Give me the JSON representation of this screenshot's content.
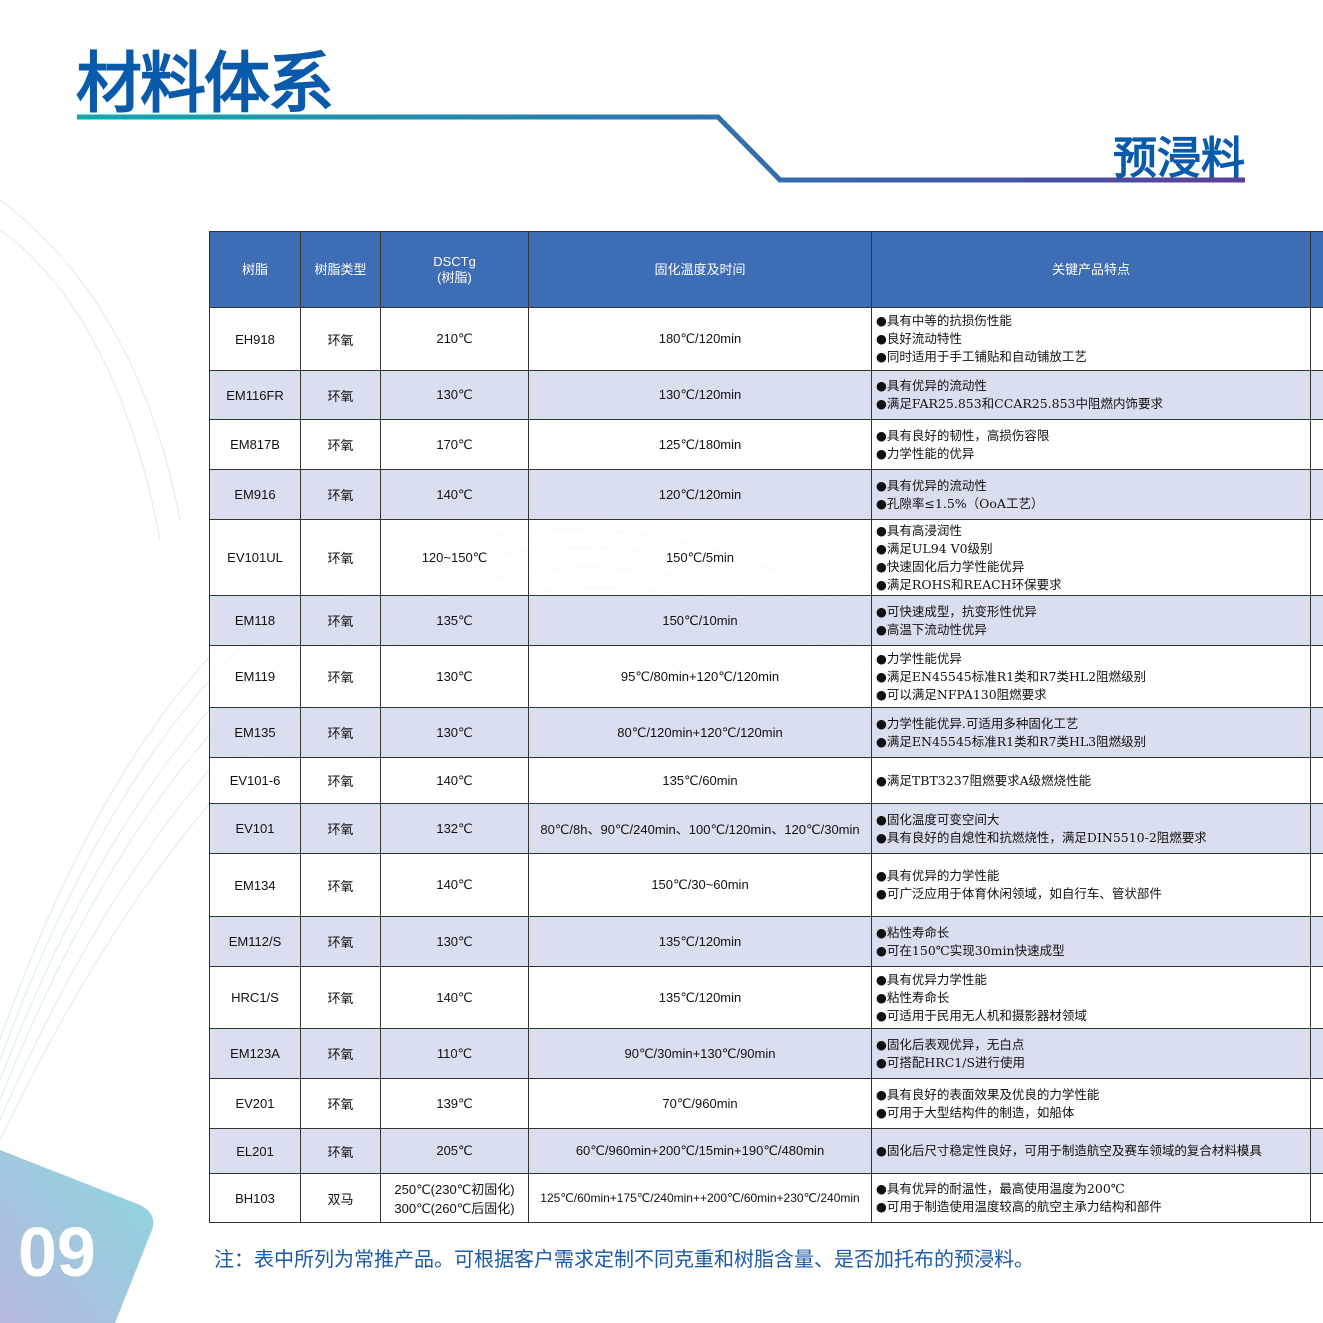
{
  "header": {
    "title": "材料体系",
    "subtitle": "预浸料",
    "page_number": "09"
  },
  "table": {
    "columns": [
      "树脂",
      "树脂类型",
      "DSCTg\n(树脂)",
      "固化温度及时间",
      "关键产品特点",
      ""
    ],
    "rows": [
      {
        "resin": "EH918",
        "type": "环氧",
        "tg": "210℃",
        "cure": "180℃/120min",
        "features": [
          "具有中等的抗损伤性能",
          "良好流动特性",
          "同时适用于手工铺贴和自动铺放工艺"
        ]
      },
      {
        "resin": "EM116FR",
        "type": "环氧",
        "tg": "130℃",
        "cure": "130℃/120min",
        "features": [
          "具有优异的流动性",
          "满足FAR25.853和CCAR25.853中阻燃内饰要求"
        ]
      },
      {
        "resin": "EM817B",
        "type": "环氧",
        "tg": "170℃",
        "cure": "125℃/180min",
        "features": [
          "具有良好的韧性，高损伤容限",
          "力学性能的优异"
        ]
      },
      {
        "resin": "EM916",
        "type": "环氧",
        "tg": "140℃",
        "cure": "120℃/120min",
        "features": [
          "具有优异的流动性",
          "孔隙率≤1.5%（OoA工艺）"
        ]
      },
      {
        "resin": "EV101UL",
        "type": "环氧",
        "tg": "120~150℃",
        "cure": "150℃/5min",
        "features": [
          "具有高浸润性",
          "满足UL94 V0级别",
          "快速固化后力学性能优异",
          "满足ROHS和REACH环保要求"
        ]
      },
      {
        "resin": "EM118",
        "type": "环氧",
        "tg": "135℃",
        "cure": "150℃/10min",
        "features": [
          "可快速成型，抗变形性优异",
          "高温下流动性优异"
        ]
      },
      {
        "resin": "EM119",
        "type": "环氧",
        "tg": "130℃",
        "cure": "95℃/80min+120℃/120min",
        "features": [
          "力学性能优异",
          "满足EN45545标准R1类和R7类HL2阻燃级别",
          "可以满足NFPA130阻燃要求"
        ]
      },
      {
        "resin": "EM135",
        "type": "环氧",
        "tg": "130℃",
        "cure": "80℃/120min+120℃/120min",
        "features": [
          "力学性能优异.可适用多种固化工艺",
          "满足EN45545标准R1类和R7类HL3阻燃级别"
        ]
      },
      {
        "resin": "EV101-6",
        "type": "环氧",
        "tg": "140℃",
        "cure": "135℃/60min",
        "features": [
          "满足TBT3237阻燃要求A级燃烧性能"
        ]
      },
      {
        "resin": "EV101",
        "type": "环氧",
        "tg": "132℃",
        "cure": "80℃/8h、90℃/240min、100℃/120min、120℃/30min",
        "features": [
          "固化温度可变空间大",
          "具有良好的自熄性和抗燃烧性，满足DIN5510-2阻燃要求"
        ]
      },
      {
        "resin": "EM134",
        "type": "环氧",
        "tg": "140℃",
        "cure": "150℃/30~60min",
        "features": [
          "具有优异的力学性能",
          "可广泛应用于体育休闲领域，如自行车、管状部件"
        ]
      },
      {
        "resin": "EM112/S",
        "type": "环氧",
        "tg": "130℃",
        "cure": "135℃/120min",
        "features": [
          "粘性寿命长",
          "可在150℃实现30min快速成型"
        ]
      },
      {
        "resin": "HRC1/S",
        "type": "环氧",
        "tg": "140℃",
        "cure": "135℃/120min",
        "features": [
          "具有优异力学性能",
          "粘性寿命长",
          "可适用于民用无人机和摄影器材领域"
        ]
      },
      {
        "resin": "EM123A",
        "type": "环氧",
        "tg": "110℃",
        "cure": "90℃/30min+130℃/90min",
        "features": [
          "固化后表观优异，无白点",
          "可搭配HRC1/S进行使用"
        ]
      },
      {
        "resin": "EV201",
        "type": "环氧",
        "tg": "139℃",
        "cure": "70℃/960min",
        "features": [
          "具有良好的表面效果及优良的力学性能",
          "可用于大型结构件的制造，如船体"
        ]
      },
      {
        "resin": "EL201",
        "type": "环氧",
        "tg": "205℃",
        "cure": "60℃/960min+200℃/15min+190℃/480min",
        "features": [
          "固化后尺寸稳定性良好，可用于制造航空及赛车领域的复合材料模具"
        ]
      },
      {
        "resin": "BH103",
        "type": "双马",
        "tg": "250℃(230℃初固化)\n300℃(260℃后固化)",
        "cure": "125℃/60min+175℃/240min++200℃/60min+230℃/240min",
        "features": [
          "具有优异的耐温性，最高使用温度为200℃",
          "可用于制造使用温度较高的航空主承力结构和部件"
        ]
      }
    ]
  },
  "note": "注：表中所列为常推产品。可根据客户需求定制不同克重和树脂含量、是否加托布的预浸料。",
  "colors": {
    "title": "#0a5aab",
    "header_bg": "#3d6db4",
    "row_alt": "#d5dcec",
    "note": "#1c5aa8"
  }
}
